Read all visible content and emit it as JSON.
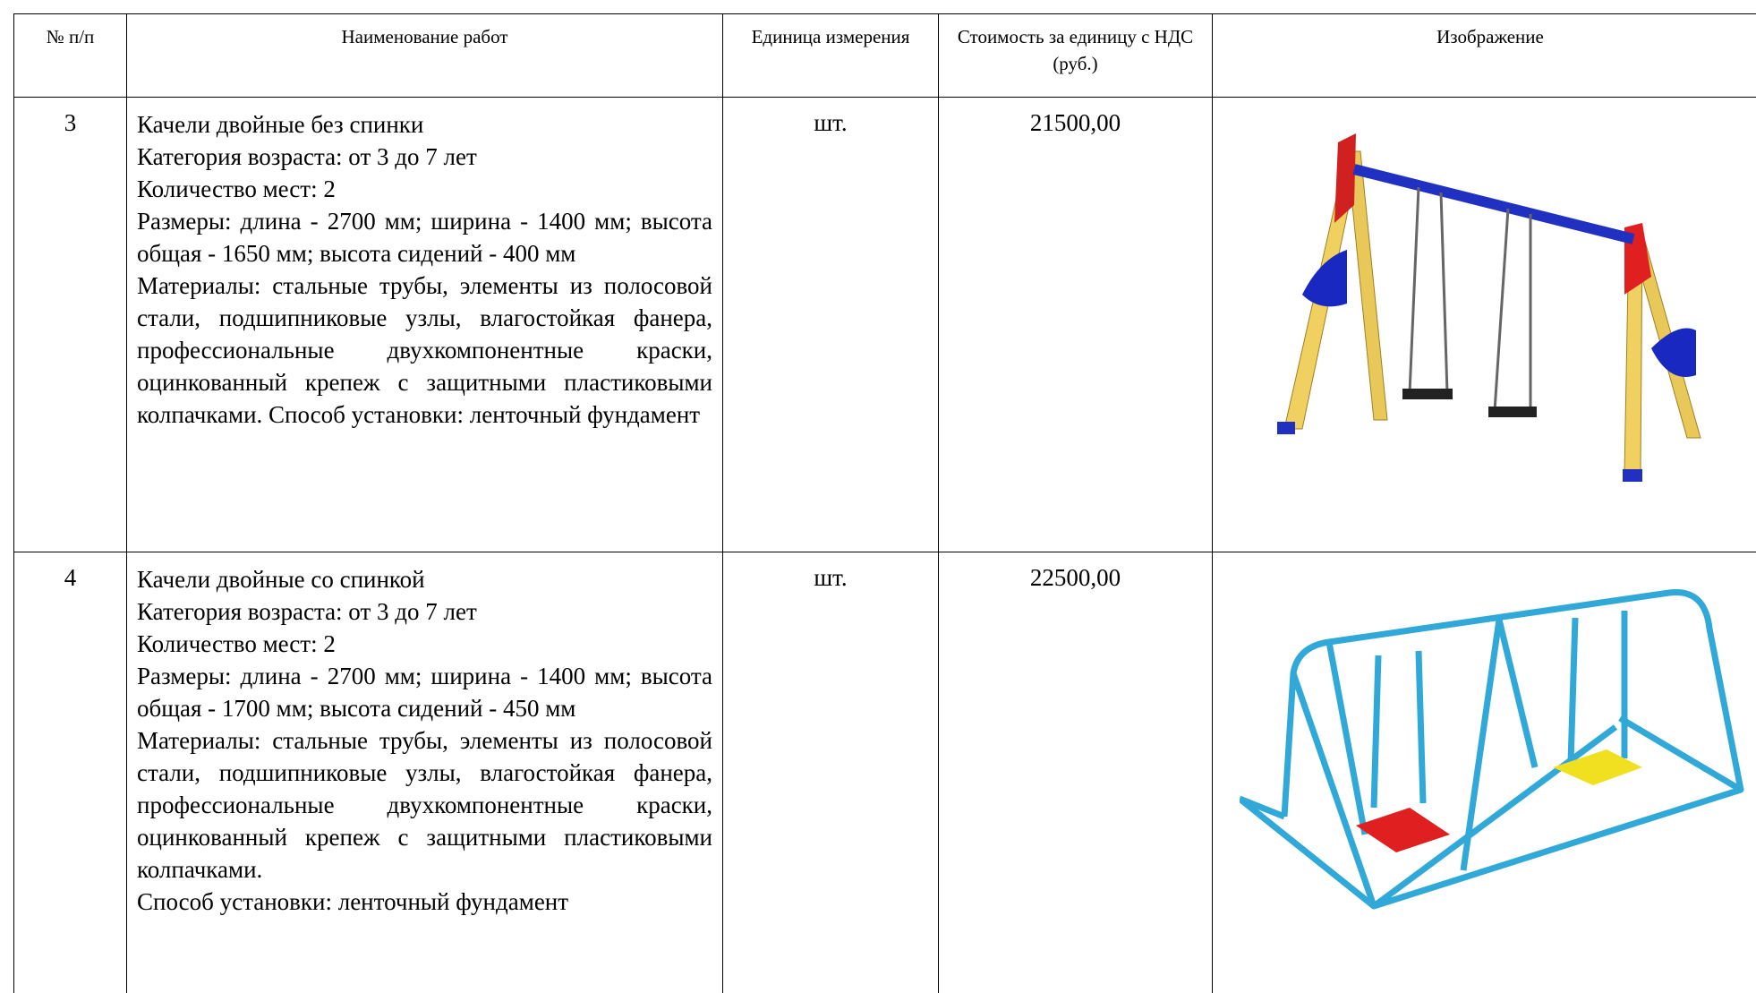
{
  "table": {
    "header": [
      "№ п/п",
      "Наименование работ",
      "Единица измерения",
      "Стоимость за единицу с НДС (руб.)",
      "Изображение"
    ],
    "rows": [
      {
        "number": "3",
        "description": [
          "Качели двойные без спинки",
          "Категория возраста: от 3 до 7 лет",
          "Количество мест: 2",
          "Размеры: длина - 2700 мм; ширина - 1400 мм; высота общая - 1650 мм; высота сидений - 400 мм",
          "Материалы: стальные трубы, элементы из полосовой стали, подшипниковые узлы, влагостойкая фанера, профессиональные двухкомпонентные краски, оцинкованный крепеж с защитными пластиковыми колпачками. Способ установки: ленточный фундамент"
        ],
        "unit": "шт.",
        "price": "21500,00"
      },
      {
        "number": "4",
        "description": [
          "Качели двойные со спинкой",
          "Категория возраста: от 3 до 7 лет",
          "Количество мест: 2",
          "Размеры: длина - 2700 мм; ширина - 1400 мм; высота общая - 1700 мм; высота сидений - 450 мм",
          "Материалы: стальные трубы, элементы из полосовой стали, подшипниковые узлы, влагостойкая фанера, профессиональные двухкомпонентные краски, оцинкованный крепеж с защитными пластиковыми колпачками.",
          "Способ установки: ленточный фундамент"
        ],
        "unit": "шт.",
        "price": "22500,00"
      }
    ]
  }
}
